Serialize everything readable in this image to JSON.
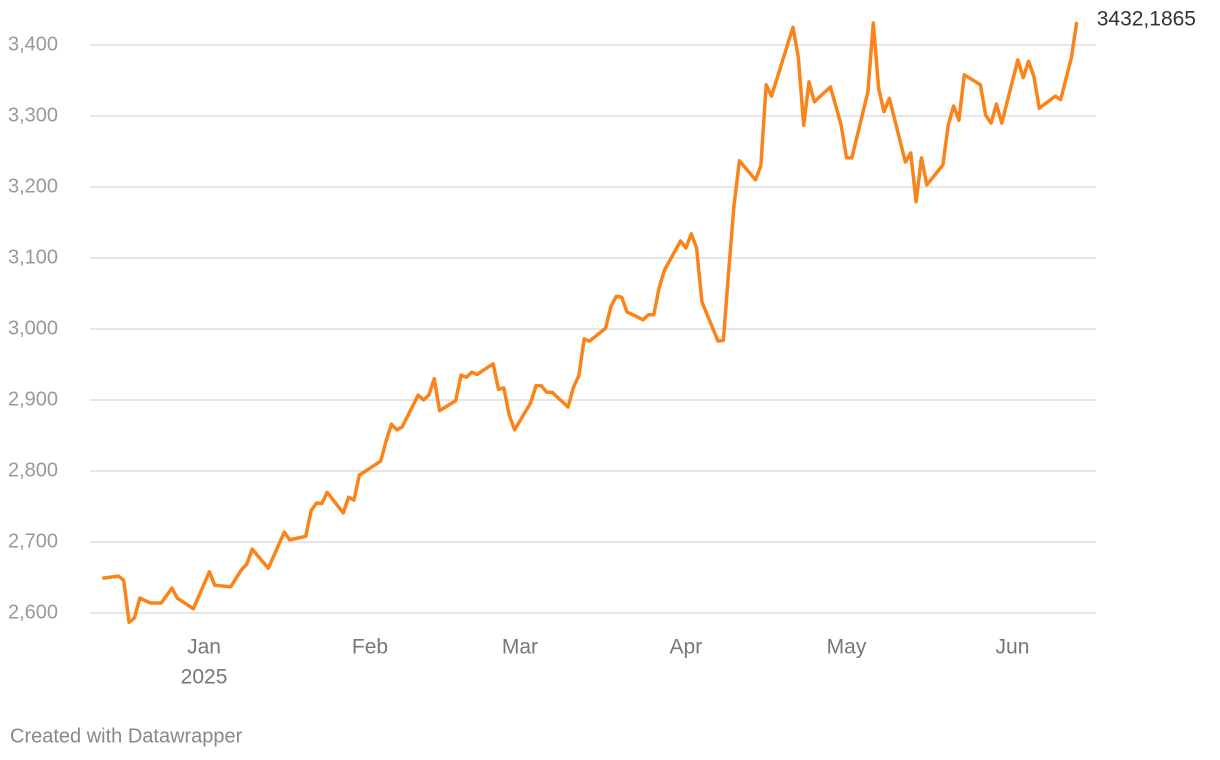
{
  "chart_data": {
    "type": "line",
    "x": [
      -19,
      -16,
      -15,
      -14,
      -13,
      -12,
      -10,
      -8,
      -6,
      -5,
      -2,
      1,
      2,
      5,
      7,
      8,
      9,
      12,
      15,
      16,
      19,
      20,
      21,
      22,
      23,
      26,
      27,
      28,
      29,
      33,
      34,
      35,
      36,
      37,
      40,
      41,
      42,
      43,
      44,
      47,
      48,
      49,
      50,
      51,
      54,
      55,
      56,
      57,
      58,
      61,
      62,
      63,
      64,
      65,
      68,
      69,
      70,
      71,
      72,
      75,
      76,
      77,
      78,
      79,
      82,
      83,
      84,
      85,
      86,
      89,
      90,
      91,
      92,
      93,
      96,
      97,
      98,
      99,
      100,
      103,
      104,
      105,
      106,
      110,
      111,
      112,
      113,
      114,
      117,
      119,
      120,
      121,
      124,
      125,
      126,
      127,
      128,
      131,
      132,
      133,
      134,
      135,
      138,
      139,
      140,
      141,
      142,
      145,
      146,
      147,
      148,
      149,
      152,
      153,
      154,
      155,
      156,
      159,
      160,
      162,
      163
    ],
    "series": [
      {
        "color": "#fa8419",
        "values": [
          2649,
          2652,
          2646,
          2587,
          2593,
          2621,
          2614,
          2614,
          2635,
          2621,
          2606,
          2658,
          2639,
          2637,
          2661,
          2669,
          2690,
          2663,
          2714,
          2703,
          2708,
          2744,
          2755,
          2754,
          2770,
          2741,
          2763,
          2759,
          2794,
          2814,
          2842,
          2866,
          2858,
          2862,
          2907,
          2900,
          2907,
          2930,
          2885,
          2899,
          2935,
          2932,
          2939,
          2936,
          2951,
          2915,
          2917,
          2879,
          2858,
          2896,
          2920,
          2920,
          2911,
          2911,
          2890,
          2918,
          2934,
          2986,
          2983,
          3001,
          3032,
          3046,
          3045,
          3024,
          3013,
          3020,
          3020,
          3058,
          3083,
          3124,
          3114,
          3134,
          3114,
          3038,
          2983,
          2984,
          3082,
          3175,
          3237,
          3210,
          3230,
          3344,
          3328,
          3425,
          3383,
          3287,
          3348,
          3320,
          3341,
          3287,
          3241,
          3241,
          3334,
          3431,
          3339,
          3306,
          3325,
          3235,
          3248,
          3179,
          3241,
          3203,
          3231,
          3287,
          3314,
          3294,
          3358,
          3344,
          3301,
          3290,
          3317,
          3290,
          3379,
          3354,
          3377,
          3356,
          3311,
          3328,
          3323,
          3382,
          3432.1865
        ],
        "value_labels": [
          null,
          null,
          null,
          null,
          null,
          null,
          null,
          null,
          null,
          null,
          null,
          null,
          null,
          null,
          null,
          null,
          null,
          null,
          null,
          null,
          null,
          null,
          null,
          null,
          null,
          null,
          null,
          null,
          null,
          null,
          null,
          null,
          null,
          null,
          null,
          null,
          null,
          null,
          null,
          null,
          null,
          null,
          null,
          null,
          null,
          null,
          null,
          null,
          null,
          null,
          null,
          null,
          null,
          null,
          null,
          null,
          null,
          null,
          null,
          null,
          null,
          null,
          null,
          null,
          null,
          null,
          null,
          null,
          null,
          null,
          null,
          null,
          null,
          null,
          null,
          null,
          null,
          null,
          null,
          null,
          null,
          null,
          null,
          null,
          null,
          null,
          null,
          null,
          null,
          null,
          null,
          null,
          null,
          null,
          null,
          null,
          null,
          null,
          null,
          null,
          null,
          null,
          null,
          null,
          null,
          null,
          null,
          null,
          null,
          null,
          null,
          null,
          null,
          null,
          null,
          null,
          null,
          null,
          null,
          null,
          "3432,1865"
        ]
      }
    ],
    "xlim": [
      -21.3,
      166.6
    ],
    "xticks": [
      {
        "value": 0,
        "label": "Jan"
      },
      {
        "value": 31,
        "label": "Feb"
      },
      {
        "value": 59,
        "label": "Mar"
      },
      {
        "value": 90,
        "label": "Apr"
      },
      {
        "value": 120,
        "label": "May"
      },
      {
        "value": 151,
        "label": "Jun"
      }
    ],
    "x_year_label": "2025",
    "ylim": [
      2580,
      3450
    ],
    "yticks": [
      {
        "value": 2600,
        "label": "2,600"
      },
      {
        "value": 2700,
        "label": "2,700"
      },
      {
        "value": 2800,
        "label": "2,800"
      },
      {
        "value": 2900,
        "label": "2,900"
      },
      {
        "value": 3000,
        "label": "3,000"
      },
      {
        "value": 3100,
        "label": "3,100"
      },
      {
        "value": 3200,
        "label": "3,200"
      },
      {
        "value": 3300,
        "label": "3,300"
      },
      {
        "value": 3400,
        "label": "3,400"
      }
    ],
    "grid": true,
    "footer": "Created with Datawrapper"
  }
}
